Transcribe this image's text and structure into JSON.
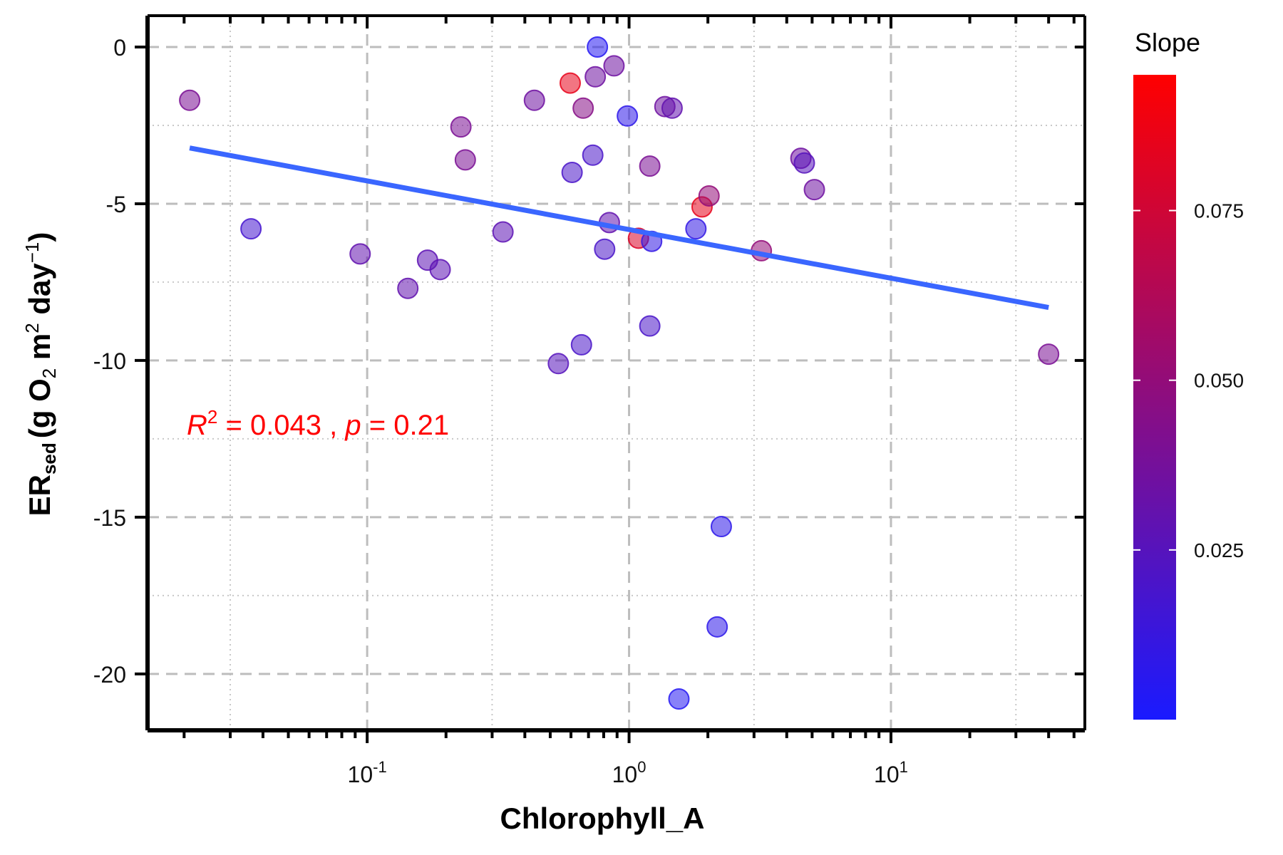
{
  "chart_data": {
    "type": "scatter",
    "xlabel": "Chlorophyll_A",
    "ylabel": {
      "main": "ER",
      "sub": "sed",
      "paren_open": "(g O",
      "o_sub": "2",
      "m": " m",
      "m_sup": "2",
      "day": " day",
      "day_sup": "−1",
      "paren_close": ")"
    },
    "x_scale": "log10",
    "xlim": [
      0.0145,
      55
    ],
    "ylim": [
      -21.8,
      1.0
    ],
    "x_major_ticks": [
      {
        "value": 0.1,
        "base": "10",
        "exp": "-1"
      },
      {
        "value": 1,
        "base": "10",
        "exp": "0"
      },
      {
        "value": 10,
        "base": "10",
        "exp": "1"
      }
    ],
    "y_ticks": [
      0,
      -5,
      -10,
      -15,
      -20
    ],
    "y_tick_labels": [
      "0",
      "-5",
      "-10",
      "-15",
      "-20"
    ],
    "grid": true,
    "colorbar": {
      "title": "Slope",
      "min": 0.0,
      "max": 0.095,
      "ticks": [
        0.025,
        0.05,
        0.075
      ],
      "tick_labels": [
        "0.025",
        "0.050",
        "0.075"
      ],
      "color_low": "#1a1aff",
      "color_high": "#ff0000"
    },
    "fit_line": {
      "color": "#3a66ff",
      "x": [
        0.021,
        40
      ],
      "y": [
        -3.22,
        -8.31
      ]
    },
    "annotation": {
      "r_label": "R",
      "r_sup": "2",
      "r_value": " = 0.043 , ",
      "p_label": "p",
      "p_value": " = 0.21",
      "color": "#ff0000"
    },
    "points": [
      {
        "x": 0.021,
        "y": -1.7,
        "slope": 0.04
      },
      {
        "x": 0.036,
        "y": -5.8,
        "slope": 0.018
      },
      {
        "x": 0.094,
        "y": -6.6,
        "slope": 0.03
      },
      {
        "x": 0.143,
        "y": -7.7,
        "slope": 0.03
      },
      {
        "x": 0.17,
        "y": -6.8,
        "slope": 0.028
      },
      {
        "x": 0.19,
        "y": -7.1,
        "slope": 0.028
      },
      {
        "x": 0.228,
        "y": -2.55,
        "slope": 0.04
      },
      {
        "x": 0.237,
        "y": -3.6,
        "slope": 0.04
      },
      {
        "x": 0.33,
        "y": -5.9,
        "slope": 0.028
      },
      {
        "x": 0.435,
        "y": -1.7,
        "slope": 0.035
      },
      {
        "x": 0.537,
        "y": -10.1,
        "slope": 0.025
      },
      {
        "x": 0.596,
        "y": -1.15,
        "slope": 0.085
      },
      {
        "x": 0.606,
        "y": -4.0,
        "slope": 0.02
      },
      {
        "x": 0.658,
        "y": -9.5,
        "slope": 0.02
      },
      {
        "x": 0.668,
        "y": -1.95,
        "slope": 0.045
      },
      {
        "x": 0.727,
        "y": -3.45,
        "slope": 0.02
      },
      {
        "x": 0.743,
        "y": -0.95,
        "slope": 0.035
      },
      {
        "x": 0.757,
        "y": 0.0,
        "slope": 0.005
      },
      {
        "x": 0.807,
        "y": -6.45,
        "slope": 0.02
      },
      {
        "x": 0.841,
        "y": -5.6,
        "slope": 0.03
      },
      {
        "x": 0.876,
        "y": -0.6,
        "slope": 0.035
      },
      {
        "x": 0.985,
        "y": -2.2,
        "slope": 0.008
      },
      {
        "x": 1.086,
        "y": -6.1,
        "slope": 0.08
      },
      {
        "x": 1.2,
        "y": -3.8,
        "slope": 0.04
      },
      {
        "x": 1.2,
        "y": -8.9,
        "slope": 0.02
      },
      {
        "x": 1.22,
        "y": -6.2,
        "slope": 0.01
      },
      {
        "x": 1.37,
        "y": -1.9,
        "slope": 0.035
      },
      {
        "x": 1.46,
        "y": -1.95,
        "slope": 0.03
      },
      {
        "x": 1.55,
        "y": -20.8,
        "slope": 0.005
      },
      {
        "x": 1.8,
        "y": -5.8,
        "slope": 0.01
      },
      {
        "x": 1.9,
        "y": -5.1,
        "slope": 0.085
      },
      {
        "x": 2.02,
        "y": -4.75,
        "slope": 0.05
      },
      {
        "x": 2.17,
        "y": -18.5,
        "slope": 0.008
      },
      {
        "x": 2.25,
        "y": -15.3,
        "slope": 0.008
      },
      {
        "x": 3.2,
        "y": -6.5,
        "slope": 0.05
      },
      {
        "x": 4.53,
        "y": -3.55,
        "slope": 0.035
      },
      {
        "x": 4.67,
        "y": -3.7,
        "slope": 0.025
      },
      {
        "x": 5.1,
        "y": -4.55,
        "slope": 0.035
      },
      {
        "x": 40.0,
        "y": -9.8,
        "slope": 0.04
      }
    ]
  }
}
